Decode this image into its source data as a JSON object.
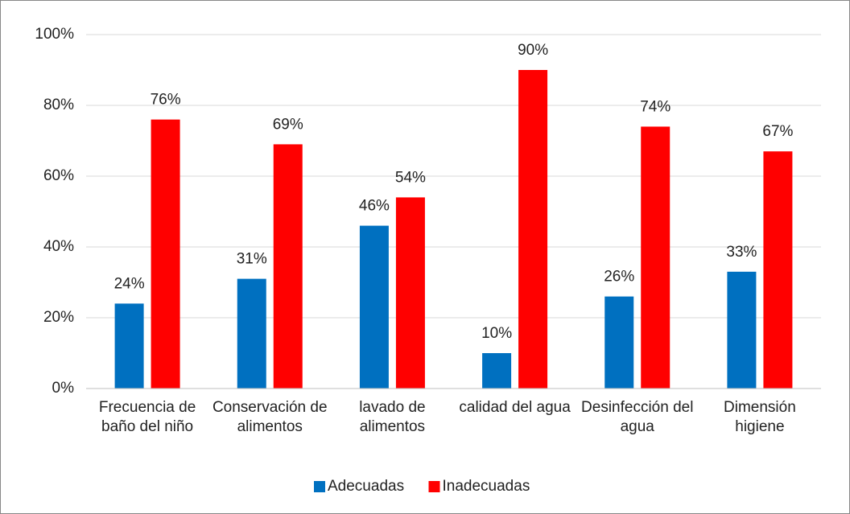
{
  "chart_data": {
    "type": "bar",
    "categories": [
      "Frecuencia de baño del niño",
      "Conservación de alimentos",
      "lavado de alimentos",
      "calidad del agua",
      "Desinfección del agua",
      "Dimensión higiene"
    ],
    "series": [
      {
        "name": "Adecuadas",
        "color": "#0070c0",
        "values": [
          24,
          31,
          46,
          10,
          26,
          33
        ],
        "value_labels": [
          "24%",
          "31%",
          "46%",
          "10%",
          "26%",
          "33%"
        ]
      },
      {
        "name": "Inadecuadas",
        "color": "#ff0000",
        "values": [
          76,
          69,
          54,
          90,
          74,
          67
        ],
        "value_labels": [
          "76%",
          "69%",
          "54%",
          "90%",
          "74%",
          "67%"
        ]
      }
    ],
    "ylim": [
      0,
      100
    ],
    "yticks": [
      {
        "value": 0,
        "label": "0%"
      },
      {
        "value": 20,
        "label": "20%"
      },
      {
        "value": 40,
        "label": "40%"
      },
      {
        "value": 60,
        "label": "60%"
      },
      {
        "value": 80,
        "label": "80%"
      },
      {
        "value": 100,
        "label": "100%"
      }
    ],
    "grid": true,
    "legend": "bottom"
  }
}
